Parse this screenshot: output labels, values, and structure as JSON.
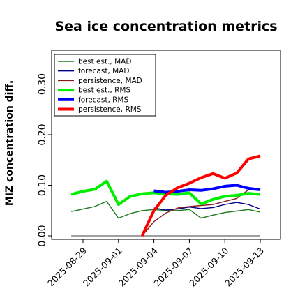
{
  "chart_data": {
    "type": "line",
    "title": "Sea ice concentration metrics",
    "ylabel": "MIZ concentration diff.",
    "xlabel": "",
    "ylim": [
      0.0,
      0.34
    ],
    "yticks": [
      "0.00",
      "0.10",
      "0.20",
      "0.30"
    ],
    "ytick_values": [
      0.0,
      0.1,
      0.2,
      0.3
    ],
    "x": [
      "2025-08-28",
      "2025-08-29",
      "2025-08-30",
      "2025-08-31",
      "2025-09-01",
      "2025-09-02",
      "2025-09-03",
      "2025-09-04",
      "2025-09-05",
      "2025-09-06",
      "2025-09-07",
      "2025-09-08",
      "2025-09-09",
      "2025-09-10",
      "2025-09-11",
      "2025-09-12",
      "2025-09-13"
    ],
    "xlim": [
      "2025-08-27",
      "2025-09-13"
    ],
    "xticks": [
      "2025-08-29",
      "2025-09-01",
      "2025-09-04",
      "2025-09-07",
      "2025-09-10",
      "2025-09-13"
    ],
    "highlight_tick": "2025-09-04",
    "highlight_color": "#228b22",
    "legend_position": "upper left",
    "grid": false,
    "series": [
      {
        "name": "best est., MAD",
        "color": "#1e7a1e",
        "width": 1.4,
        "values": [
          0.048,
          0.053,
          0.058,
          0.068,
          0.035,
          0.044,
          0.05,
          0.052,
          0.05,
          0.05,
          0.052,
          0.035,
          0.041,
          0.046,
          0.049,
          0.052,
          0.047
        ]
      },
      {
        "name": "forecast,  MAD",
        "color": "#00008b",
        "width": 1.4,
        "values": [
          null,
          null,
          null,
          null,
          null,
          null,
          null,
          0.055,
          0.051,
          0.053,
          0.057,
          0.054,
          0.056,
          0.062,
          0.066,
          0.062,
          0.053
        ]
      },
      {
        "name": "persistence, MAD",
        "color": "#8b1a1a",
        "width": 1.4,
        "values": [
          null,
          null,
          null,
          null,
          null,
          null,
          0.0,
          0.028,
          0.045,
          0.055,
          0.058,
          0.06,
          0.062,
          0.068,
          0.074,
          0.091,
          0.09
        ]
      },
      {
        "name": "best est., RMS",
        "color": "#00ee00",
        "width": 4,
        "values": [
          0.082,
          0.088,
          0.092,
          0.108,
          0.062,
          0.078,
          0.083,
          0.085,
          0.083,
          0.082,
          0.085,
          0.063,
          0.072,
          0.078,
          0.08,
          0.084,
          0.082
        ]
      },
      {
        "name": "forecast,  RMS",
        "color": "#0000ff",
        "width": 4,
        "values": [
          null,
          null,
          null,
          null,
          null,
          null,
          null,
          0.089,
          0.086,
          0.088,
          0.091,
          0.09,
          0.093,
          0.098,
          0.1,
          0.094,
          0.091
        ]
      },
      {
        "name": "persistence, RMS",
        "color": "#ff0000",
        "width": 4,
        "values": [
          null,
          null,
          null,
          null,
          null,
          null,
          0.0,
          0.05,
          0.08,
          0.095,
          0.104,
          0.115,
          0.123,
          0.114,
          0.124,
          0.152,
          0.158
        ]
      }
    ],
    "zero_line": {
      "value": 0.0,
      "color": "#808080"
    }
  }
}
